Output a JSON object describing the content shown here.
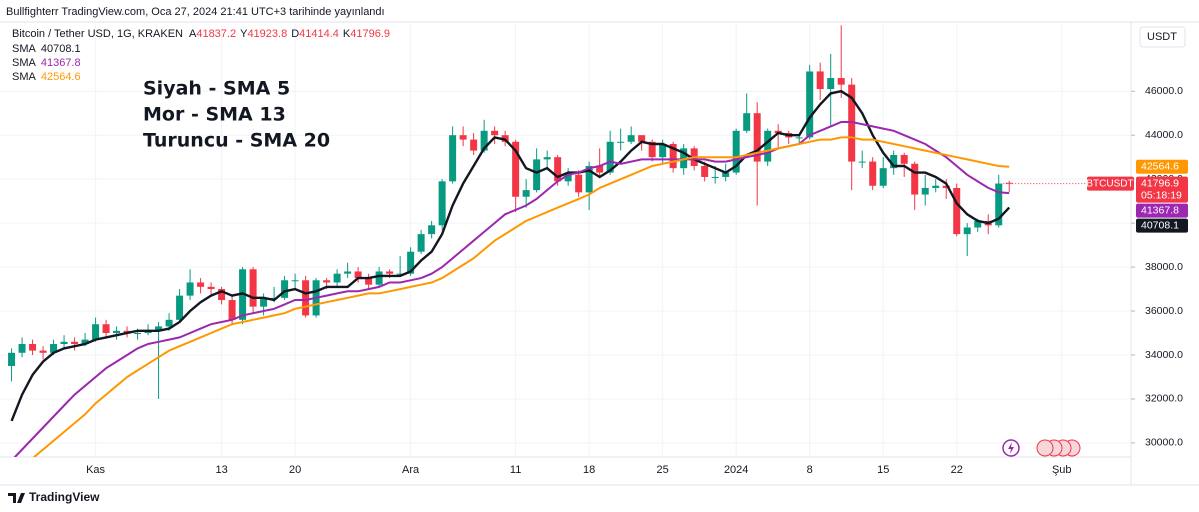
{
  "header": {
    "text": "Bullfighterr TradingView.com, Oca 27, 2024 21:41 UTC+3 tarihinde yayınlandı",
    "brand": "TradingView"
  },
  "chart_data": {
    "type": "candlestick",
    "title": "Bitcoin / Tether USD, 1G, KRAKEN",
    "ohlc_labels": [
      "A",
      "Y",
      "D",
      "K"
    ],
    "symbol": "BTCUSDT",
    "countdown": "05:18:19",
    "currency": "USDT",
    "up_color": "#089981",
    "down_color": "#f23645",
    "grid": true,
    "xlim": [
      -1.1,
      106.5
    ],
    "ylim": [
      29450,
      49150
    ],
    "xticks": [
      {
        "value": 8,
        "label": "Kas"
      },
      {
        "value": 20,
        "label": "13"
      },
      {
        "value": 27,
        "label": "20"
      },
      {
        "value": 38,
        "label": "Ara"
      },
      {
        "value": 48,
        "label": "11"
      },
      {
        "value": 55,
        "label": "18"
      },
      {
        "value": 62,
        "label": "25"
      },
      {
        "value": 69,
        "label": "2024"
      },
      {
        "value": 76,
        "label": "8"
      },
      {
        "value": 83,
        "label": "15"
      },
      {
        "value": 90,
        "label": "22"
      },
      {
        "value": 100,
        "label": "Şub"
      }
    ],
    "yticks": [
      {
        "value": 30000,
        "label": "30000.0"
      },
      {
        "value": 32000,
        "label": "32000.0"
      },
      {
        "value": 34000,
        "label": "34000.0"
      },
      {
        "value": 36000,
        "label": "36000.0"
      },
      {
        "value": 38000,
        "label": "38000.0"
      },
      {
        "value": 40000,
        "label": "40000.0"
      },
      {
        "value": 42000,
        "label": "42000.0"
      },
      {
        "value": 44000,
        "label": "44000.0"
      },
      {
        "value": 46000,
        "label": "46000.0"
      }
    ],
    "annotations": [
      {
        "text": "Siyah - SMA 5",
        "color": "#131722"
      },
      {
        "text": "Mor - SMA 13",
        "color": "#9c27b0"
      },
      {
        "text": "Turuncu - SMA 20",
        "color": "#ff9800"
      }
    ],
    "candles": [
      [
        33500,
        34300,
        32800,
        34100
      ],
      [
        34100,
        34800,
        33900,
        34500
      ],
      [
        34500,
        34700,
        34000,
        34200
      ],
      [
        34200,
        34400,
        33800,
        34100
      ],
      [
        34100,
        34700,
        34000,
        34500
      ],
      [
        34500,
        34900,
        34300,
        34600
      ],
      [
        34600,
        34800,
        34200,
        34500
      ],
      [
        34500,
        35000,
        34400,
        34700
      ],
      [
        34700,
        35700,
        34600,
        35400
      ],
      [
        35400,
        35600,
        34800,
        35000
      ],
      [
        35000,
        35300,
        34700,
        35100
      ],
      [
        35100,
        35300,
        34800,
        35000
      ],
      [
        35000,
        35200,
        34700,
        35000
      ],
      [
        35000,
        35400,
        34900,
        35100
      ],
      [
        35100,
        35500,
        32000,
        35300
      ],
      [
        35300,
        35900,
        35100,
        35600
      ],
      [
        35600,
        37000,
        35500,
        36700
      ],
      [
        36700,
        37900,
        36500,
        37300
      ],
      [
        37300,
        37500,
        36800,
        37100
      ],
      [
        37100,
        37300,
        36700,
        37000
      ],
      [
        37000,
        37100,
        36300,
        36500
      ],
      [
        36500,
        36700,
        35400,
        35600
      ],
      [
        35600,
        38000,
        35400,
        37900
      ],
      [
        37900,
        38000,
        35900,
        36200
      ],
      [
        36200,
        36800,
        35800,
        36600
      ],
      [
        36600,
        37100,
        36400,
        36600
      ],
      [
        36600,
        37600,
        36500,
        37400
      ],
      [
        37400,
        37700,
        37000,
        37400
      ],
      [
        37400,
        37600,
        35700,
        35800
      ],
      [
        35800,
        37500,
        35700,
        37400
      ],
      [
        37400,
        37500,
        37000,
        37300
      ],
      [
        37300,
        37900,
        37100,
        37700
      ],
      [
        37700,
        38200,
        37500,
        37800
      ],
      [
        37800,
        38000,
        37300,
        37500
      ],
      [
        37500,
        37700,
        37000,
        37200
      ],
      [
        37200,
        38000,
        37100,
        37800
      ],
      [
        37800,
        37900,
        37500,
        37700
      ],
      [
        37700,
        38500,
        37600,
        37700
      ],
      [
        37700,
        38900,
        37600,
        38700
      ],
      [
        38700,
        39700,
        38600,
        39500
      ],
      [
        39500,
        40100,
        39300,
        39900
      ],
      [
        39900,
        42000,
        39700,
        41900
      ],
      [
        41900,
        44400,
        41800,
        44000
      ],
      [
        44000,
        44400,
        43500,
        43800
      ],
      [
        43800,
        44100,
        43100,
        43300
      ],
      [
        43300,
        44700,
        43200,
        44200
      ],
      [
        44200,
        44400,
        43600,
        44000
      ],
      [
        44000,
        44200,
        43500,
        43700
      ],
      [
        43700,
        43800,
        40500,
        41200
      ],
      [
        41200,
        42000,
        40700,
        41500
      ],
      [
        41500,
        43400,
        41400,
        42900
      ],
      [
        42900,
        43300,
        42500,
        43000
      ],
      [
        43000,
        43100,
        41700,
        41900
      ],
      [
        41900,
        42500,
        41700,
        42200
      ],
      [
        42200,
        42400,
        41200,
        41400
      ],
      [
        41400,
        42800,
        40600,
        42600
      ],
      [
        42600,
        43400,
        42100,
        42300
      ],
      [
        42300,
        44200,
        42200,
        43700
      ],
      [
        43700,
        44300,
        43300,
        43700
      ],
      [
        43700,
        44400,
        43600,
        44000
      ],
      [
        44000,
        44000,
        43300,
        43700
      ],
      [
        43700,
        43800,
        42800,
        43000
      ],
      [
        43000,
        43800,
        42700,
        43600
      ],
      [
        43600,
        43700,
        42300,
        42500
      ],
      [
        42500,
        43600,
        42200,
        43400
      ],
      [
        43400,
        43500,
        42400,
        42600
      ],
      [
        42600,
        42800,
        41900,
        42100
      ],
      [
        42100,
        42600,
        41800,
        42100
      ],
      [
        42100,
        42700,
        41900,
        42300
      ],
      [
        42300,
        44300,
        42200,
        44200
      ],
      [
        44200,
        45900,
        44100,
        45000
      ],
      [
        45000,
        45500,
        40800,
        42800
      ],
      [
        42800,
        44300,
        42600,
        44200
      ],
      [
        44200,
        44500,
        43400,
        44100
      ],
      [
        44100,
        44200,
        43600,
        43900
      ],
      [
        43900,
        44000,
        43600,
        43900
      ],
      [
        43900,
        47200,
        43800,
        46900
      ],
      [
        46900,
        47300,
        45600,
        46100
      ],
      [
        46100,
        47700,
        44400,
        46600
      ],
      [
        46600,
        49000,
        45700,
        46300
      ],
      [
        46300,
        46600,
        41500,
        42800
      ],
      [
        42800,
        43300,
        42500,
        42800
      ],
      [
        42800,
        43000,
        41500,
        41700
      ],
      [
        41700,
        43000,
        41600,
        42500
      ],
      [
        42500,
        43300,
        42200,
        43100
      ],
      [
        43100,
        43200,
        42100,
        42700
      ],
      [
        42700,
        42800,
        40600,
        41300
      ],
      [
        41300,
        42200,
        40800,
        41600
      ],
      [
        41600,
        42000,
        41400,
        41700
      ],
      [
        41700,
        42000,
        41100,
        41600
      ],
      [
        41600,
        41800,
        39400,
        39500
      ],
      [
        39500,
        40000,
        38500,
        39800
      ],
      [
        39800,
        40200,
        39600,
        40100
      ],
      [
        40100,
        40400,
        39500,
        39900
      ],
      [
        39900,
        42200,
        39800,
        41800
      ],
      [
        41837.2,
        41923.8,
        41414.4,
        41796.9
      ]
    ],
    "series": [
      {
        "name": "SMA",
        "color": "#131722",
        "values": [
          31000,
          32200,
          33100,
          33700,
          34100,
          34300,
          34400,
          34500,
          34700,
          34800,
          34900,
          35000,
          35100,
          35100,
          35100,
          35200,
          35500,
          36000,
          36400,
          36700,
          36900,
          36700,
          36800,
          36600,
          36600,
          36500,
          36900,
          37000,
          36800,
          36900,
          37100,
          37100,
          37100,
          37500,
          37500,
          37600,
          37600,
          37600,
          37800,
          38300,
          38700,
          39500,
          40800,
          41800,
          42600,
          43400,
          43900,
          43800,
          43300,
          42500,
          42300,
          42500,
          42100,
          42300,
          42300,
          42400,
          42100,
          42400,
          42800,
          43300,
          43700,
          43600,
          43600,
          43400,
          43200,
          42900,
          42700,
          42500,
          42300,
          42600,
          43100,
          43300,
          43700,
          44100,
          44000,
          44000,
          44800,
          45400,
          45900,
          46000,
          45700,
          45000,
          44000,
          43200,
          42600,
          42600,
          42300,
          42300,
          42100,
          41800,
          40900,
          40400,
          40100,
          40000,
          40200,
          40708.1
        ]
      },
      {
        "name": "SMA",
        "color": "#9c27b0",
        "values": [
          29200,
          29700,
          30200,
          30700,
          31200,
          31700,
          32200,
          32600,
          33000,
          33400,
          33700,
          34000,
          34300,
          34500,
          34600,
          34700,
          34800,
          35000,
          35200,
          35400,
          35500,
          35600,
          35800,
          35900,
          36000,
          36100,
          36300,
          36500,
          36500,
          36600,
          36700,
          36800,
          36900,
          36900,
          37000,
          37100,
          37300,
          37300,
          37400,
          37500,
          37700,
          38000,
          38400,
          38800,
          39200,
          39600,
          40000,
          40400,
          40600,
          40800,
          41100,
          41500,
          41900,
          42200,
          42300,
          42500,
          42600,
          42800,
          42700,
          42800,
          42900,
          42900,
          42900,
          42900,
          42900,
          42900,
          42900,
          42800,
          42800,
          42900,
          43000,
          43100,
          43200,
          43400,
          43500,
          43600,
          44000,
          44200,
          44400,
          44600,
          44600,
          44500,
          44400,
          44300,
          44200,
          44000,
          43800,
          43600,
          43300,
          43000,
          42600,
          42200,
          41900,
          41600,
          41400,
          41367.8
        ]
      },
      {
        "name": "SMA",
        "color": "#ff9800",
        "values": [
          28500,
          28900,
          29300,
          29700,
          30100,
          30500,
          30900,
          31300,
          31800,
          32200,
          32600,
          33000,
          33300,
          33600,
          33900,
          34200,
          34400,
          34600,
          34800,
          35000,
          35200,
          35400,
          35500,
          35600,
          35700,
          35800,
          35900,
          36100,
          36200,
          36300,
          36400,
          36500,
          36600,
          36700,
          36800,
          36800,
          36900,
          37000,
          37100,
          37200,
          37300,
          37500,
          37800,
          38100,
          38400,
          38800,
          39200,
          39500,
          39800,
          40100,
          40300,
          40500,
          40700,
          40900,
          41100,
          41300,
          41600,
          41800,
          42000,
          42200,
          42400,
          42600,
          42700,
          42800,
          42900,
          43000,
          43000,
          43000,
          43000,
          43000,
          43100,
          43200,
          43300,
          43400,
          43500,
          43600,
          43700,
          43800,
          43800,
          43900,
          43900,
          43800,
          43800,
          43700,
          43600,
          43500,
          43400,
          43300,
          43200,
          43100,
          43000,
          42900,
          42800,
          42700,
          42600,
          42564.6
        ]
      }
    ]
  }
}
